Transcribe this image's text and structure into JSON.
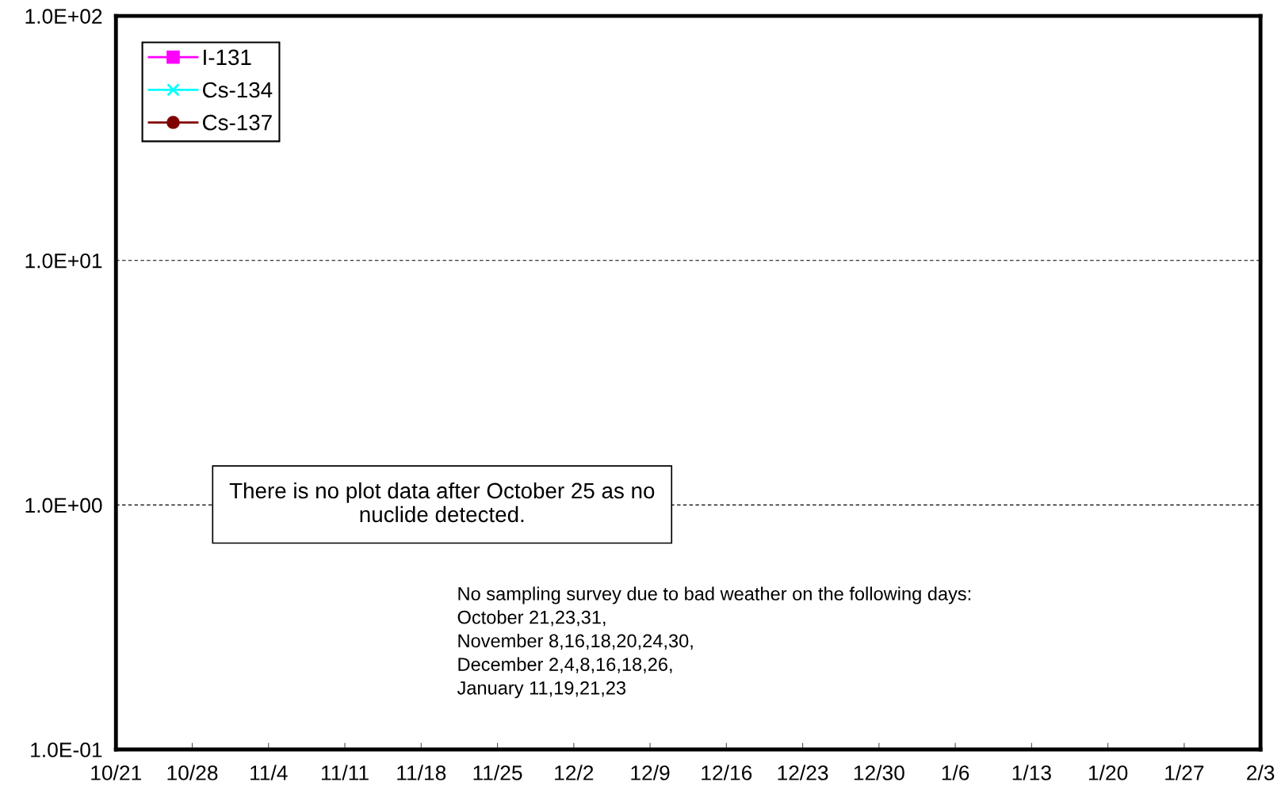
{
  "chart_data": {
    "type": "line",
    "categories": [
      "10/21",
      "10/28",
      "11/4",
      "11/11",
      "11/18",
      "11/25",
      "12/2",
      "12/9",
      "12/16",
      "12/23",
      "12/30",
      "1/6",
      "1/13",
      "1/20",
      "1/27",
      "2/3"
    ],
    "series": [
      {
        "name": "I-131",
        "color": "#ff00ff",
        "marker": "square",
        "values": [
          null,
          null,
          null,
          null,
          null,
          null,
          null,
          null,
          null,
          null,
          null,
          null,
          null,
          null,
          null,
          null
        ]
      },
      {
        "name": "Cs-134",
        "color": "#00ffff",
        "marker": "cross",
        "values": [
          null,
          null,
          null,
          null,
          null,
          null,
          null,
          null,
          null,
          null,
          null,
          null,
          null,
          null,
          null,
          null
        ]
      },
      {
        "name": "Cs-137",
        "color": "#800000",
        "marker": "circle",
        "values": [
          null,
          null,
          null,
          null,
          null,
          null,
          null,
          null,
          null,
          null,
          null,
          null,
          null,
          null,
          null,
          null
        ]
      }
    ],
    "log": "y",
    "ylim": [
      0.1,
      100
    ],
    "yticks": [
      {
        "value": 0.1,
        "label": "1.0E-01"
      },
      {
        "value": 1,
        "label": "1.0E+00"
      },
      {
        "value": 10,
        "label": "1.0E+01"
      },
      {
        "value": 100,
        "label": "1.0E+02"
      }
    ],
    "grid": "y",
    "legend": "top left",
    "annotations": [
      "There is no plot data after October 25 as no\nnuclide detected.",
      "No sampling survey due to bad weather on the following days:\nOctober 21,23,31,\nNovember 8,16,18,20,24,30,\nDecember 2,4,8,16,18,26,\nJanuary 11,19,21,23"
    ]
  }
}
